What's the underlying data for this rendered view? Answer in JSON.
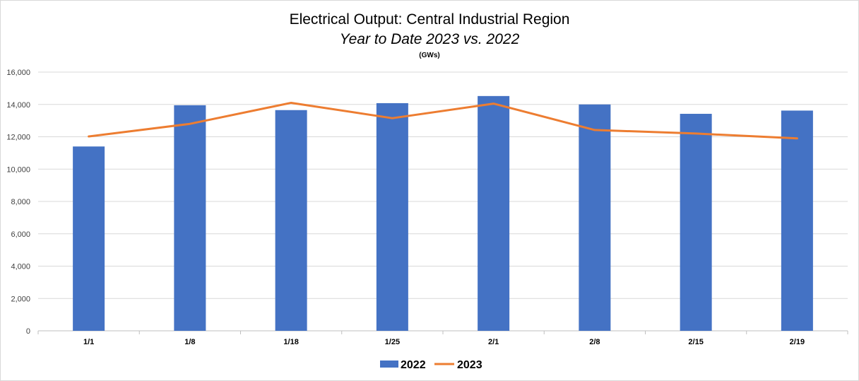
{
  "chart_data": {
    "type": "bar",
    "title": "Electrical Output:  Central Industrial Region",
    "subtitle": "Year to Date 2023 vs. 2022",
    "units": "(GWs)",
    "categories": [
      "1/1",
      "1/8",
      "1/18",
      "1/25",
      "2/1",
      "2/8",
      "2/15",
      "2/19"
    ],
    "series": [
      {
        "name": "2022",
        "kind": "bar",
        "color": "#4472C4",
        "values": [
          11400,
          13950,
          13650,
          14080,
          14520,
          14000,
          13420,
          13620
        ]
      },
      {
        "name": "2023",
        "kind": "line",
        "color": "#ED7D31",
        "values": [
          12020,
          12800,
          14100,
          13150,
          14050,
          12420,
          12200,
          11900
        ]
      }
    ],
    "ylim": [
      0,
      16000
    ],
    "yticks": [
      "0",
      "2,000",
      "4,000",
      "6,000",
      "8,000",
      "10,000",
      "12,000",
      "14,000",
      "16,000"
    ],
    "grid": true,
    "legend_position": "bottom"
  }
}
